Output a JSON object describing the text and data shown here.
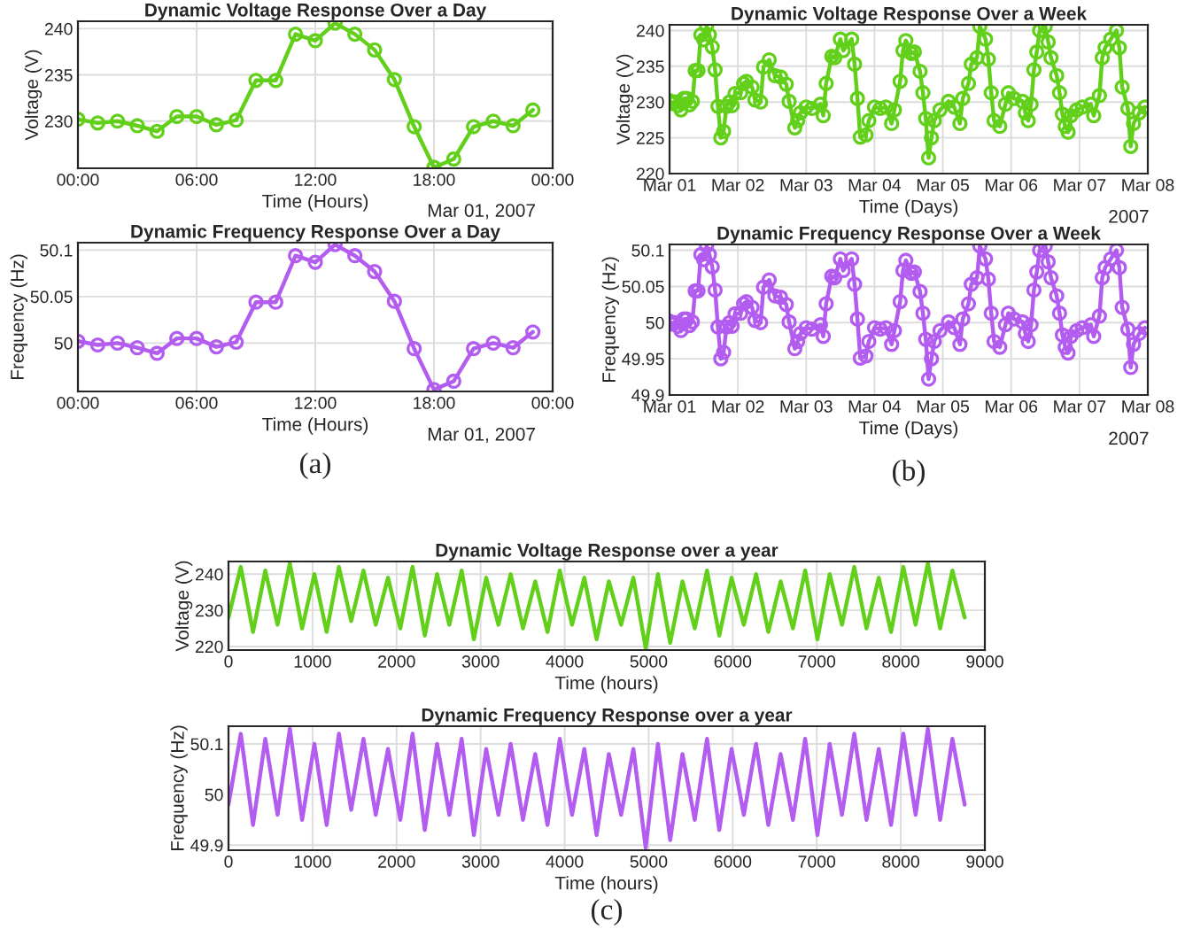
{
  "chart_data": [
    {
      "type": "line",
      "title": "Dynamic Voltage Response Over a Day",
      "xlabel": "Time (Hours)",
      "ylabel": "Voltage (V)",
      "annotations": [
        "Mar 01, 2007"
      ],
      "x": [
        0,
        1,
        2,
        3,
        4,
        5,
        6,
        7,
        8,
        9,
        10,
        11,
        12,
        13,
        14,
        15,
        16,
        17,
        18,
        19,
        20,
        21,
        22,
        23
      ],
      "values": [
        230.2,
        229.8,
        230.0,
        229.5,
        228.9,
        230.5,
        230.5,
        229.6,
        230.1,
        234.4,
        234.4,
        239.4,
        238.7,
        240.6,
        239.4,
        237.7,
        234.5,
        229.4,
        225.0,
        225.9,
        229.4,
        230.0,
        229.5,
        231.2
      ],
      "color": "#62d01a",
      "marker": "circle",
      "line_style": "solid",
      "grid": true,
      "xlim": [
        0,
        24
      ],
      "xticks": [
        {
          "value": 0,
          "label": "00:00"
        },
        {
          "value": 6,
          "label": "06:00"
        },
        {
          "value": 12,
          "label": "12:00"
        },
        {
          "value": 18,
          "label": "18:00"
        },
        {
          "value": 24,
          "label": "00:00"
        }
      ],
      "ylim": [
        224.9,
        240.8
      ],
      "yticks": [
        230,
        235,
        240
      ]
    },
    {
      "type": "line",
      "title": "Dynamic Frequency Response Over a Day",
      "xlabel": "Time (Hours)",
      "ylabel": "Frequency (Hz)",
      "annotations": [
        "Mar 01, 2007",
        "(a)"
      ],
      "x": [
        0,
        1,
        2,
        3,
        4,
        5,
        6,
        7,
        8,
        9,
        10,
        11,
        12,
        13,
        14,
        15,
        16,
        17,
        18,
        19,
        20,
        21,
        22,
        23
      ],
      "values": [
        50.002,
        49.998,
        50.0,
        49.995,
        49.989,
        50.005,
        50.005,
        49.996,
        50.001,
        50.044,
        50.044,
        50.094,
        50.087,
        50.106,
        50.094,
        50.077,
        50.045,
        49.994,
        49.95,
        49.959,
        49.994,
        50.0,
        49.995,
        50.012
      ],
      "color": "#b35cf0",
      "marker": "circle",
      "line_style": "solid",
      "grid": true,
      "xlim": [
        0,
        24
      ],
      "xticks": [
        {
          "value": 0,
          "label": "00:00"
        },
        {
          "value": 6,
          "label": "06:00"
        },
        {
          "value": 12,
          "label": "12:00"
        },
        {
          "value": 18,
          "label": "18:00"
        },
        {
          "value": 24,
          "label": "00:00"
        }
      ],
      "ylim": [
        49.948,
        50.108
      ],
      "yticks": [
        50,
        50.05,
        50.1
      ]
    },
    {
      "type": "line",
      "title": "Dynamic Voltage Response Over a Week",
      "xlabel": "Time (Days)",
      "ylabel": "Voltage (V)",
      "annotations": [
        "2007"
      ],
      "x": [
        "2007-03-01T00:00",
        "2007-03-01T01:00",
        "2007-03-01T02:00",
        "2007-03-01T03:00",
        "2007-03-01T04:00",
        "2007-03-01T05:00",
        "2007-03-01T06:00",
        "2007-03-01T07:00",
        "2007-03-01T08:00",
        "2007-03-01T09:00",
        "2007-03-01T10:00",
        "2007-03-01T11:00",
        "2007-03-01T12:00",
        "2007-03-01T13:00",
        "2007-03-01T14:00",
        "2007-03-01T15:00",
        "2007-03-01T16:00",
        "2007-03-01T17:00",
        "2007-03-01T18:00",
        "2007-03-01T19:00",
        "2007-03-01T20:00",
        "2007-03-01T21:00",
        "2007-03-01T22:00",
        "2007-03-01T23:00",
        "2007-03-02T01:00",
        "2007-03-02T02:00",
        "2007-03-02T03:00",
        "2007-03-02T05:00",
        "2007-03-02T06:00",
        "2007-03-02T08:00",
        "2007-03-02T09:00",
        "2007-03-02T11:00",
        "2007-03-02T13:00",
        "2007-03-02T15:00",
        "2007-03-02T17:00",
        "2007-03-02T18:00",
        "2007-03-02T20:00",
        "2007-03-02T21:00",
        "2007-03-02T22:00",
        "2007-03-03T00:00",
        "2007-03-03T02:00",
        "2007-03-03T05:00",
        "2007-03-03T06:00",
        "2007-03-03T07:00",
        "2007-03-03T09:00",
        "2007-03-03T10:00",
        "2007-03-03T12:00",
        "2007-03-03T13:00",
        "2007-03-03T16:00",
        "2007-03-03T17:00",
        "2007-03-03T18:00",
        "2007-03-03T19:00",
        "2007-03-03T21:00",
        "2007-03-03T22:00",
        "2007-03-04T00:00",
        "2007-03-04T02:00",
        "2007-03-04T04:00",
        "2007-03-04T06:00",
        "2007-03-04T07:00",
        "2007-03-04T09:00",
        "2007-03-04T10:00",
        "2007-03-04T11:00",
        "2007-03-04T13:00",
        "2007-03-04T14:00",
        "2007-03-04T16:00",
        "2007-03-04T17:00",
        "2007-03-04T18:00",
        "2007-03-04T19:00",
        "2007-03-04T20:00",
        "2007-03-04T21:00",
        "2007-03-04T23:00",
        "2007-03-05T02:00",
        "2007-03-05T04:00",
        "2007-03-05T06:00",
        "2007-03-05T07:00",
        "2007-03-05T09:00",
        "2007-03-05T10:00",
        "2007-03-05T12:00",
        "2007-03-05T13:00",
        "2007-03-05T15:00",
        "2007-03-05T16:00",
        "2007-03-05T17:00",
        "2007-03-05T18:00",
        "2007-03-05T20:00",
        "2007-03-05T22:00",
        "2007-03-05T23:00",
        "2007-03-06T01:00",
        "2007-03-06T04:00",
        "2007-03-06T05:00",
        "2007-03-06T06:00",
        "2007-03-06T07:00",
        "2007-03-06T08:00",
        "2007-03-06T09:00",
        "2007-03-06T10:00",
        "2007-03-06T12:00",
        "2007-03-06T13:00",
        "2007-03-06T14:00",
        "2007-03-06T16:00",
        "2007-03-06T17:00",
        "2007-03-06T18:00",
        "2007-03-06T19:00",
        "2007-03-06T20:00",
        "2007-03-06T21:00",
        "2007-03-06T23:00",
        "2007-03-07T01:00",
        "2007-03-07T04:00",
        "2007-03-07T05:00",
        "2007-03-07T07:00",
        "2007-03-07T08:00",
        "2007-03-07T09:00",
        "2007-03-07T11:00",
        "2007-03-07T13:00",
        "2007-03-07T14:00",
        "2007-03-07T15:00",
        "2007-03-07T17:00",
        "2007-03-07T18:00",
        "2007-03-07T19:00",
        "2007-03-07T21:00",
        "2007-03-07T23:00"
      ],
      "values": [
        230.2,
        229.8,
        230.0,
        229.5,
        228.9,
        230.5,
        230.5,
        229.6,
        230.1,
        234.4,
        234.4,
        239.4,
        238.7,
        240.6,
        239.4,
        237.7,
        234.5,
        229.4,
        225.0,
        225.9,
        229.4,
        230.0,
        229.5,
        231.2,
        231.3,
        232.6,
        232.9,
        232.1,
        230.3,
        230.0,
        234.9,
        235.9,
        233.7,
        233.5,
        232.5,
        230.1,
        226.4,
        227.4,
        228.5,
        229.3,
        229.1,
        229.7,
        228.1,
        232.6,
        236.4,
        236.2,
        238.8,
        237.2,
        238.8,
        235.3,
        230.5,
        225.1,
        225.4,
        227.4,
        229.3,
        229.1,
        229.3,
        227.0,
        228.9,
        232.9,
        237.2,
        238.6,
        236.8,
        237.0,
        234.3,
        231.3,
        227.7,
        222.2,
        225.0,
        227.4,
        228.9,
        230.1,
        229.3,
        227.0,
        230.5,
        232.6,
        235.3,
        236.2,
        240.6,
        238.8,
        236.0,
        231.3,
        227.4,
        226.6,
        229.7,
        231.3,
        230.5,
        230.1,
        228.5,
        227.4,
        229.7,
        234.5,
        237.0,
        240.0,
        240.6,
        238.4,
        236.2,
        233.7,
        231.3,
        228.3,
        226.6,
        225.8,
        228.1,
        228.9,
        229.3,
        229.7,
        228.1,
        230.9,
        236.2,
        237.6,
        238.8,
        240.0,
        237.6,
        232.1,
        229.1,
        223.8,
        227.0,
        228.5,
        229.3
      ],
      "color": "#62d01a",
      "marker": "circle",
      "line_style": "solid",
      "grid": true,
      "xlim": [
        "2007-03-01",
        "2007-03-08"
      ],
      "xticks": [
        {
          "value": "2007-03-01",
          "label": "Mar 01"
        },
        {
          "value": "2007-03-02",
          "label": "Mar 02"
        },
        {
          "value": "2007-03-03",
          "label": "Mar 03"
        },
        {
          "value": "2007-03-04",
          "label": "Mar 04"
        },
        {
          "value": "2007-03-05",
          "label": "Mar 05"
        },
        {
          "value": "2007-03-06",
          "label": "Mar 06"
        },
        {
          "value": "2007-03-07",
          "label": "Mar 07"
        },
        {
          "value": "2007-03-08",
          "label": "Mar 08"
        }
      ],
      "ylim": [
        220,
        240.8
      ],
      "yticks": [
        220,
        225,
        230,
        235,
        240
      ]
    },
    {
      "type": "line",
      "title": "Dynamic Frequency Response Over a Week",
      "xlabel": "Time (Days)",
      "ylabel": "Frequency (Hz)",
      "annotations": [
        "2007",
        "(b)"
      ],
      "x": [
        "2007-03-01T00:00",
        "2007-03-01T01:00",
        "2007-03-01T02:00",
        "2007-03-01T03:00",
        "2007-03-01T04:00",
        "2007-03-01T05:00",
        "2007-03-01T06:00",
        "2007-03-01T07:00",
        "2007-03-01T08:00",
        "2007-03-01T09:00",
        "2007-03-01T10:00",
        "2007-03-01T11:00",
        "2007-03-01T12:00",
        "2007-03-01T13:00",
        "2007-03-01T14:00",
        "2007-03-01T15:00",
        "2007-03-01T16:00",
        "2007-03-01T17:00",
        "2007-03-01T18:00",
        "2007-03-01T19:00",
        "2007-03-01T20:00",
        "2007-03-01T21:00",
        "2007-03-01T22:00",
        "2007-03-01T23:00",
        "2007-03-02T01:00",
        "2007-03-02T02:00",
        "2007-03-02T03:00",
        "2007-03-02T05:00",
        "2007-03-02T06:00",
        "2007-03-02T08:00",
        "2007-03-02T09:00",
        "2007-03-02T11:00",
        "2007-03-02T13:00",
        "2007-03-02T15:00",
        "2007-03-02T17:00",
        "2007-03-02T18:00",
        "2007-03-02T20:00",
        "2007-03-02T21:00",
        "2007-03-02T22:00",
        "2007-03-03T00:00",
        "2007-03-03T02:00",
        "2007-03-03T05:00",
        "2007-03-03T06:00",
        "2007-03-03T07:00",
        "2007-03-03T09:00",
        "2007-03-03T10:00",
        "2007-03-03T12:00",
        "2007-03-03T13:00",
        "2007-03-03T16:00",
        "2007-03-03T17:00",
        "2007-03-03T18:00",
        "2007-03-03T19:00",
        "2007-03-03T21:00",
        "2007-03-03T22:00",
        "2007-03-04T00:00",
        "2007-03-04T02:00",
        "2007-03-04T04:00",
        "2007-03-04T06:00",
        "2007-03-04T07:00",
        "2007-03-04T09:00",
        "2007-03-04T10:00",
        "2007-03-04T11:00",
        "2007-03-04T13:00",
        "2007-03-04T14:00",
        "2007-03-04T16:00",
        "2007-03-04T17:00",
        "2007-03-04T18:00",
        "2007-03-04T19:00",
        "2007-03-04T20:00",
        "2007-03-04T21:00",
        "2007-03-04T23:00",
        "2007-03-05T02:00",
        "2007-03-05T04:00",
        "2007-03-05T06:00",
        "2007-03-05T07:00",
        "2007-03-05T09:00",
        "2007-03-05T10:00",
        "2007-03-05T12:00",
        "2007-03-05T13:00",
        "2007-03-05T15:00",
        "2007-03-05T16:00",
        "2007-03-05T17:00",
        "2007-03-05T18:00",
        "2007-03-05T20:00",
        "2007-03-05T22:00",
        "2007-03-05T23:00",
        "2007-03-06T01:00",
        "2007-03-06T04:00",
        "2007-03-06T05:00",
        "2007-03-06T06:00",
        "2007-03-06T07:00",
        "2007-03-06T08:00",
        "2007-03-06T09:00",
        "2007-03-06T10:00",
        "2007-03-06T12:00",
        "2007-03-06T13:00",
        "2007-03-06T14:00",
        "2007-03-06T16:00",
        "2007-03-06T17:00",
        "2007-03-06T18:00",
        "2007-03-06T19:00",
        "2007-03-06T20:00",
        "2007-03-06T21:00",
        "2007-03-06T23:00",
        "2007-03-07T01:00",
        "2007-03-07T04:00",
        "2007-03-07T05:00",
        "2007-03-07T07:00",
        "2007-03-07T08:00",
        "2007-03-07T09:00",
        "2007-03-07T11:00",
        "2007-03-07T13:00",
        "2007-03-07T14:00",
        "2007-03-07T15:00",
        "2007-03-07T17:00",
        "2007-03-07T18:00",
        "2007-03-07T19:00",
        "2007-03-07T21:00",
        "2007-03-07T23:00"
      ],
      "values": [
        50.002,
        49.998,
        50.0,
        49.995,
        49.989,
        50.005,
        50.005,
        49.996,
        50.001,
        50.044,
        50.044,
        50.094,
        50.087,
        50.106,
        50.094,
        50.077,
        50.045,
        49.994,
        49.95,
        49.959,
        49.994,
        50.0,
        49.995,
        50.012,
        50.013,
        50.026,
        50.029,
        50.021,
        50.003,
        50.0,
        50.049,
        50.059,
        50.037,
        50.035,
        50.025,
        50.001,
        49.964,
        49.974,
        49.985,
        49.993,
        49.991,
        49.997,
        49.981,
        50.026,
        50.064,
        50.062,
        50.088,
        50.072,
        50.088,
        50.053,
        50.005,
        49.951,
        49.954,
        49.974,
        49.993,
        49.991,
        49.993,
        49.97,
        49.989,
        50.029,
        50.072,
        50.086,
        50.068,
        50.07,
        50.043,
        50.013,
        49.977,
        49.922,
        49.95,
        49.974,
        49.989,
        50.001,
        49.993,
        49.97,
        50.005,
        50.026,
        50.053,
        50.062,
        50.106,
        50.088,
        50.06,
        50.013,
        49.974,
        49.966,
        49.997,
        50.013,
        50.005,
        50.001,
        49.985,
        49.974,
        49.997,
        50.045,
        50.07,
        50.1,
        50.106,
        50.084,
        50.062,
        50.037,
        50.013,
        49.983,
        49.966,
        49.958,
        49.981,
        49.989,
        49.993,
        49.997,
        49.981,
        50.009,
        50.062,
        50.076,
        50.088,
        50.1,
        50.076,
        50.021,
        49.991,
        49.938,
        49.97,
        49.985,
        49.993
      ],
      "color": "#b35cf0",
      "marker": "circle",
      "line_style": "solid",
      "grid": true,
      "xlim": [
        "2007-03-01",
        "2007-03-08"
      ],
      "xticks": [
        {
          "value": "2007-03-01",
          "label": "Mar 01"
        },
        {
          "value": "2007-03-02",
          "label": "Mar 02"
        },
        {
          "value": "2007-03-03",
          "label": "Mar 03"
        },
        {
          "value": "2007-03-04",
          "label": "Mar 04"
        },
        {
          "value": "2007-03-05",
          "label": "Mar 05"
        },
        {
          "value": "2007-03-06",
          "label": "Mar 06"
        },
        {
          "value": "2007-03-07",
          "label": "Mar 07"
        },
        {
          "value": "2007-03-08",
          "label": "Mar 08"
        }
      ],
      "ylim": [
        49.9,
        50.108
      ],
      "yticks": [
        49.9,
        49.95,
        50,
        50.05,
        50.1
      ]
    },
    {
      "type": "line",
      "title": "Dynamic Voltage Response over a year",
      "xlabel": "Time (hours)",
      "ylabel": "Voltage (V)",
      "x": [
        0,
        146,
        292,
        438,
        584,
        730,
        876,
        1022,
        1168,
        1314,
        1460,
        1606,
        1752,
        1898,
        2044,
        2190,
        2336,
        2482,
        2628,
        2774,
        2920,
        3066,
        3212,
        3358,
        3504,
        3650,
        3796,
        3942,
        4088,
        4234,
        4380,
        4526,
        4672,
        4818,
        4964,
        5110,
        5256,
        5402,
        5548,
        5694,
        5840,
        5986,
        6132,
        6278,
        6424,
        6570,
        6716,
        6862,
        7008,
        7154,
        7300,
        7446,
        7592,
        7738,
        7884,
        8030,
        8176,
        8322,
        8468,
        8614,
        8760
      ],
      "values": [
        228,
        242,
        224,
        241,
        226,
        243,
        225,
        240,
        224,
        242,
        227,
        241,
        226,
        239,
        225,
        242,
        223,
        240,
        226,
        241,
        222,
        239,
        226,
        240,
        225,
        238,
        224,
        241,
        226,
        239,
        222,
        238,
        226,
        239,
        219.5,
        240,
        221,
        238,
        225,
        241,
        223,
        239,
        226,
        240,
        224,
        238,
        225,
        241,
        222,
        240,
        226,
        242,
        225,
        239,
        224,
        242,
        226,
        243,
        225,
        241,
        228
      ],
      "color": "#62d01a",
      "line_style": "solid",
      "grid": true,
      "xlim": [
        0,
        9000
      ],
      "xticks": [
        0,
        1000,
        2000,
        3000,
        4000,
        5000,
        6000,
        7000,
        8000,
        9000
      ],
      "ylim": [
        219,
        243.5
      ],
      "yticks": [
        220,
        230,
        240
      ]
    },
    {
      "type": "line",
      "title": "Dynamic Frequency Response over a year",
      "xlabel": "Time (hours)",
      "ylabel": "Frequency (Hz)",
      "annotations": [
        "(c)"
      ],
      "x": [
        0,
        146,
        292,
        438,
        584,
        730,
        876,
        1022,
        1168,
        1314,
        1460,
        1606,
        1752,
        1898,
        2044,
        2190,
        2336,
        2482,
        2628,
        2774,
        2920,
        3066,
        3212,
        3358,
        3504,
        3650,
        3796,
        3942,
        4088,
        4234,
        4380,
        4526,
        4672,
        4818,
        4964,
        5110,
        5256,
        5402,
        5548,
        5694,
        5840,
        5986,
        6132,
        6278,
        6424,
        6570,
        6716,
        6862,
        7008,
        7154,
        7300,
        7446,
        7592,
        7738,
        7884,
        8030,
        8176,
        8322,
        8468,
        8614,
        8760
      ],
      "values": [
        49.98,
        50.12,
        49.94,
        50.11,
        49.96,
        50.13,
        49.95,
        50.1,
        49.94,
        50.12,
        49.97,
        50.11,
        49.96,
        50.09,
        49.95,
        50.12,
        49.93,
        50.1,
        49.96,
        50.11,
        49.92,
        50.09,
        49.96,
        50.1,
        49.95,
        50.08,
        49.94,
        50.11,
        49.96,
        50.09,
        49.92,
        50.08,
        49.96,
        50.09,
        49.895,
        50.1,
        49.91,
        50.08,
        49.95,
        50.11,
        49.93,
        50.09,
        49.96,
        50.1,
        49.94,
        50.08,
        49.95,
        50.11,
        49.92,
        50.1,
        49.96,
        50.12,
        49.95,
        50.09,
        49.94,
        50.12,
        49.96,
        50.13,
        49.95,
        50.11,
        49.98
      ],
      "color": "#b35cf0",
      "line_style": "solid",
      "grid": true,
      "xlim": [
        0,
        9000
      ],
      "xticks": [
        0,
        1000,
        2000,
        3000,
        4000,
        5000,
        6000,
        7000,
        8000,
        9000
      ],
      "ylim": [
        49.89,
        50.135
      ],
      "yticks": [
        49.9,
        50,
        50.1
      ]
    }
  ]
}
